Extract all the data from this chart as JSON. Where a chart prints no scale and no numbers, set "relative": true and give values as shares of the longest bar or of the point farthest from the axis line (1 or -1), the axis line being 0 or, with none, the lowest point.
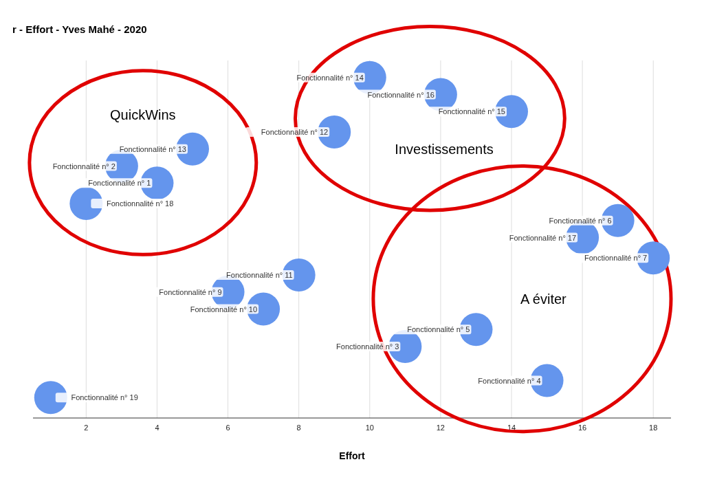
{
  "chart_data": {
    "type": "bubble",
    "title": "r - Effort - Yves Mahé - 2020",
    "xlabel": "Effort",
    "relative": true,
    "grid": "x",
    "xlim": [
      0.5,
      18.5
    ],
    "xticks": [
      2,
      4,
      6,
      8,
      10,
      12,
      14,
      16,
      18
    ],
    "series": [
      {
        "color": "#6495ed",
        "x": [
          4,
          3,
          11,
          15,
          13,
          17,
          18,
          6,
          7,
          8,
          9,
          5,
          10,
          14,
          12,
          16,
          2,
          1
        ],
        "values": [
          0.69,
          0.74,
          0.21,
          0.11,
          0.26,
          0.58,
          0.47,
          0.37,
          0.32,
          0.42,
          0.84,
          0.79,
          1,
          0.9,
          0.95,
          0.53,
          0.63,
          0.06
        ],
        "sizes": [
          1,
          1,
          1,
          1,
          1,
          1,
          1,
          1,
          1,
          1,
          1,
          1,
          1,
          1,
          1,
          1,
          1,
          1
        ]
      }
    ],
    "annotations": [
      "QuickWins",
      "Investissements",
      "A éviter",
      {
        "text": "Fonctionnalité n° 1",
        "x": 4,
        "y": 0.69
      },
      {
        "text": "Fonctionnalité n° 2",
        "x": 3,
        "y": 0.74
      },
      {
        "text": "Fonctionnalité n° 3",
        "x": 11,
        "y": 0.21
      },
      {
        "text": "Fonctionnalité n° 4",
        "x": 15,
        "y": 0.11
      },
      {
        "text": "Fonctionnalité n° 5",
        "x": 13,
        "y": 0.26
      },
      {
        "text": "Fonctionnalité n° 6",
        "x": 17,
        "y": 0.58
      },
      {
        "text": "Fonctionnalité n° 7",
        "x": 18,
        "y": 0.47
      },
      {
        "text": "Fonctionnalité n° 9",
        "x": 6,
        "y": 0.37
      },
      {
        "text": "Fonctionnalité n° 10",
        "x": 7,
        "y": 0.32
      },
      {
        "text": "Fonctionnalité n° 11",
        "x": 8,
        "y": 0.42
      },
      {
        "text": "Fonctionnalité n° 12",
        "x": 9,
        "y": 0.84
      },
      {
        "text": "Fonctionnalité n° 13",
        "x": 5,
        "y": 0.79
      },
      {
        "text": "Fonctionnalité n° 14",
        "x": 10,
        "y": 1
      },
      {
        "text": "Fonctionnalité n° 15",
        "x": 14,
        "y": 0.9
      },
      {
        "text": "Fonctionnalité n° 16",
        "x": 12,
        "y": 0.95
      },
      {
        "text": "Fonctionnalité n° 17",
        "x": 16,
        "y": 0.53
      },
      {
        "text": "Fonctionnalité n° 18",
        "x": 2,
        "y": 0.63
      },
      {
        "text": "Fonctionnalité n° 19",
        "x": 1,
        "y": 0.06
      }
    ]
  }
}
